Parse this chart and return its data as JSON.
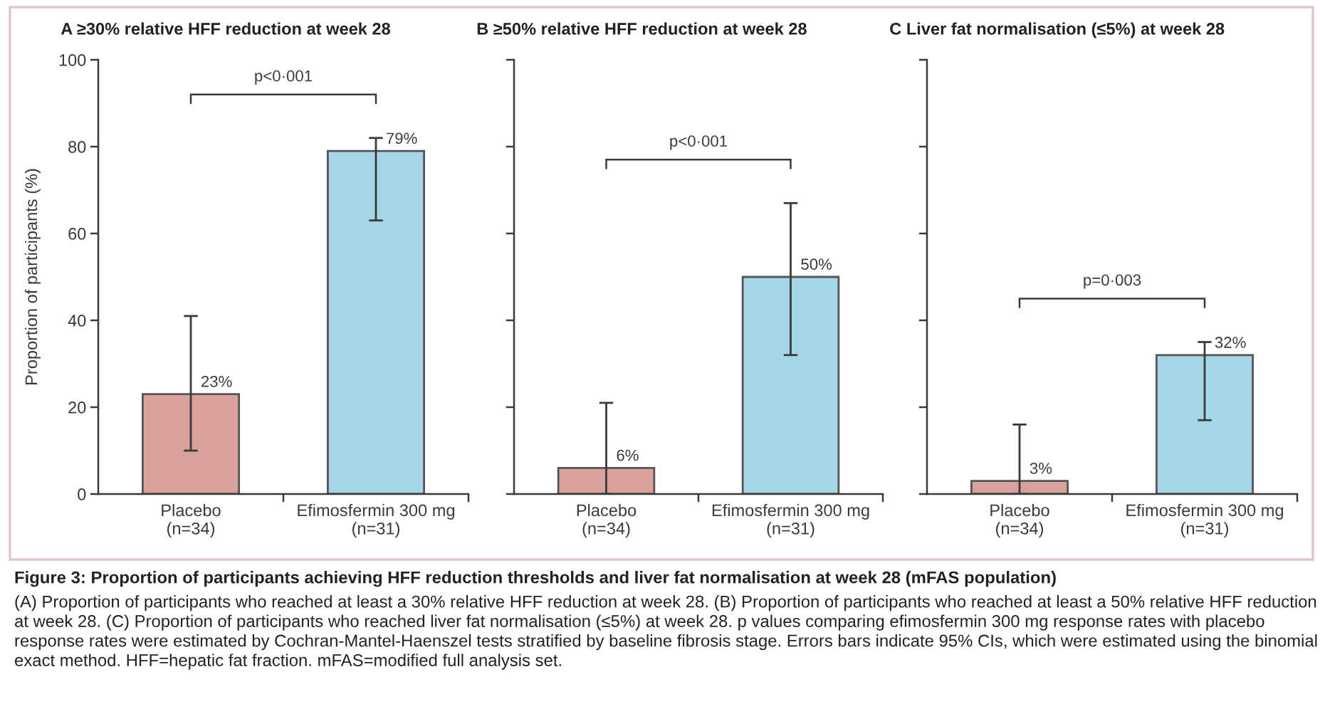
{
  "chart_data": [
    {
      "type": "bar",
      "title": "A ≥30% relative HFF reduction at week 28",
      "ylabel": "Proportion of participants (%)",
      "categories": [
        "Placebo\n(n=34)",
        "Efimosfermin 300 mg\n(n=31)"
      ],
      "values": [
        23,
        79
      ],
      "colors": [
        "#d9a19c",
        "#a5d5e6"
      ],
      "errors": [
        [
          10,
          41
        ],
        [
          63,
          82
        ]
      ],
      "value_labels": [
        "23%",
        "79%"
      ],
      "ylim": [
        0,
        100
      ],
      "yticks": [
        0,
        20,
        40,
        60,
        80,
        100
      ],
      "annotations": [
        "p<0·001",
        "Figure 3: Proportion of participants achieving HFF reduction thresholds and liver fat normalisation at week 28 (mFAS population)",
        "(A) Proportion of participants who reached at least a 30% relative HFF reduction at week 28. (B) Proportion of participants who reached at least a 50% relative HFF reduction at week 28. (C) Proportion of participants who reached liver fat normalisation (≤5%) at week 28. p values comparing efimosfermin 300 mg response rates with placebo response rates were estimated by Cochran-Mantel-Haenszel tests stratified by baseline fibrosis stage. Errors bars indicate 95% CIs, which were estimated using the binomial exact method. HFF=hepatic fat fraction. mFAS=modified full analysis set."
      ]
    },
    {
      "type": "bar",
      "title": "B ≥50% relative HFF reduction at week 28",
      "categories": [
        "Placebo\n(n=34)",
        "Efimosfermin 300 mg\n(n=31)"
      ],
      "values": [
        6,
        50
      ],
      "colors": [
        "#d9a19c",
        "#a5d5e6"
      ],
      "errors": [
        [
          0,
          21
        ],
        [
          32,
          67
        ]
      ],
      "value_labels": [
        "6%",
        "50%"
      ],
      "ylim": [
        0,
        100
      ],
      "yticks": [
        0,
        20,
        40,
        60,
        80,
        100
      ],
      "tick_labels": "x",
      "annotations": [
        "p<0·001"
      ]
    },
    {
      "type": "bar",
      "title": "C Liver fat normalisation (≤5%) at week 28",
      "categories": [
        "Placebo\n(n=34)",
        "Efimosfermin 300 mg\n(n=31)"
      ],
      "values": [
        3,
        32
      ],
      "colors": [
        "#d9a19c",
        "#a5d5e6"
      ],
      "errors": [
        [
          0,
          16
        ],
        [
          17,
          35
        ]
      ],
      "value_labels": [
        "3%",
        "32%"
      ],
      "ylim": [
        0,
        100
      ],
      "yticks": [
        0,
        20,
        40,
        60,
        80,
        100
      ],
      "tick_labels": "x",
      "annotations": [
        "p=0·003"
      ]
    }
  ]
}
